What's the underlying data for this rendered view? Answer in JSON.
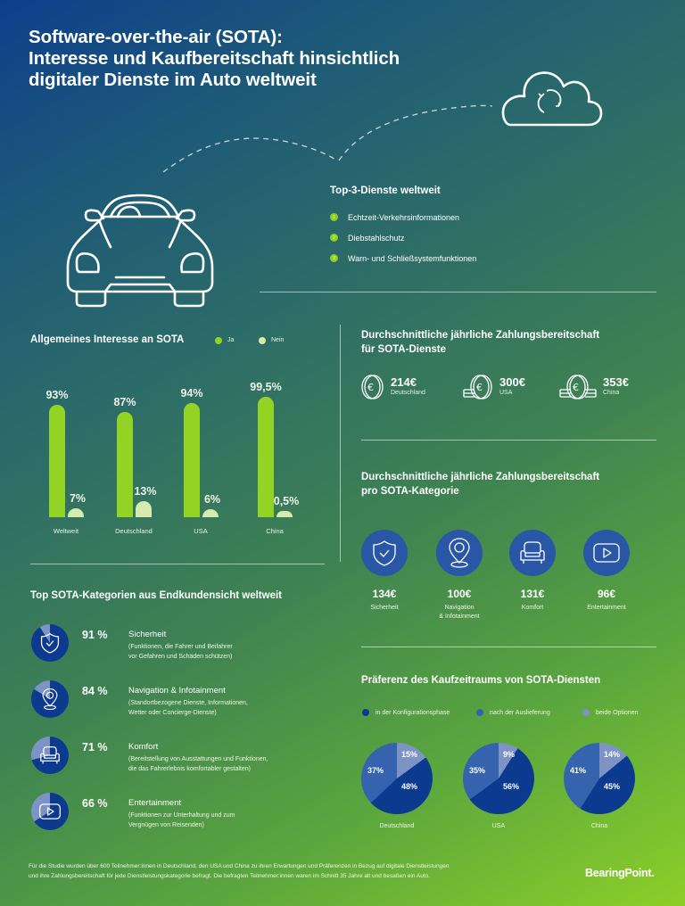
{
  "title": {
    "line1": "Software-over-the-air (SOTA):",
    "line2": "Interesse und Kaufbereitschaft hinsichtlich",
    "line3": "digitaler Dienste im Auto weltweit"
  },
  "top3": {
    "heading": "Top-3-Dienste weltweit",
    "items": [
      {
        "num": "1",
        "label": "Echtzeit-Verkehrsinformationen"
      },
      {
        "num": "2",
        "label": "Diebstahlschutz"
      },
      {
        "num": "3",
        "label": "Warn- und Schließsystemfunktionen"
      }
    ]
  },
  "interest": {
    "heading": "Allgemeines Interesse an SOTA",
    "legend": {
      "ja": "Ja",
      "nein": "Nein"
    }
  },
  "payment": {
    "heading_line1": "Durchschnittliche jährliche Zahlungsbereitschaft",
    "heading_line2": "für SOTA-Dienste",
    "items": [
      {
        "value": "214€",
        "label": "Deutschland"
      },
      {
        "value": "300€",
        "label": "USA"
      },
      {
        "value": "353€",
        "label": "China"
      }
    ]
  },
  "per_category": {
    "heading_line1": "Durchschnittliche jährliche Zahlungsbereitschaft",
    "heading_line2": "pro SOTA-Kategorie",
    "items": [
      {
        "value": "134€",
        "label": "Sicherheit",
        "label2": "",
        "icon": "shield-check-icon"
      },
      {
        "value": "100€",
        "label": "Navigation",
        "label2": "& Infotainment",
        "icon": "map-pin-icon"
      },
      {
        "value": "131€",
        "label": "Komfort",
        "label2": "",
        "icon": "armchair-icon"
      },
      {
        "value": "96€",
        "label": "Entertainment",
        "label2": "",
        "icon": "play-video-icon"
      }
    ]
  },
  "top_categories": {
    "heading": "Top SOTA-Kategorien aus Endkundensicht weltweit",
    "items": [
      {
        "pct": "91 %",
        "name": "Sicherheit",
        "desc1": "(Funktionen, die Fahrer und Beifahrer",
        "desc2": "vor Gefahren und Schäden schützen)"
      },
      {
        "pct": "84 %",
        "name": "Navigation & Infotainment",
        "desc1": "(Standortbezogene Dienste, Informationen,",
        "desc2": "Wetter oder Concierge-Dienste)"
      },
      {
        "pct": "71 %",
        "name": "Komfort",
        "desc1": "(Bereitstellung von Ausstattungen und Funktionen,",
        "desc2": "die das Fahrerlebnis komfortabler gestalten)"
      },
      {
        "pct": "66 %",
        "name": "Entertainment",
        "desc1": "(Funktionen zur Unterhaltung und zum",
        "desc2": "Vergnügen von Reisenden)"
      }
    ]
  },
  "purchase_pref": {
    "heading": "Präferenz des Kaufzeitraums von SOTA-Diensten",
    "legend": [
      "in der Konfigurationsphase",
      "nach der Auslieferung",
      "beide Optionen"
    ]
  },
  "colors": {
    "ja": "#93d323",
    "nein": "#d5ecae",
    "konfig": "#0b3a8f",
    "auslieferung": "#3563ad",
    "beide": "#7d93c6",
    "circle": "#2a56a6"
  },
  "footer": {
    "line1": "Für die Studie wurden über 600 Teilnehmer:innen in Deutschland, den USA und China zu ihren Erwartungen und Präferenzen in Bezug auf digitale Dienstleistungen",
    "line2": "und ihre Zahlungsbereitschaft für jede Dienstleistungskategorie befragt. Die befragten Teilnehmer:innen waren im Schnitt 35 Jahre alt und besaßen ein Auto.",
    "logo": "BearingPoint",
    "logo_dot": "."
  },
  "chart_data": [
    {
      "type": "bar",
      "title": "Allgemeines Interesse an SOTA",
      "categories": [
        "Weltweit",
        "Deutschland",
        "USA",
        "China"
      ],
      "series": [
        {
          "name": "Ja",
          "values": [
            93,
            87,
            94,
            99.5
          ],
          "labels": [
            "93%",
            "87%",
            "94%",
            "99,5%"
          ]
        },
        {
          "name": "Nein",
          "values": [
            7,
            13,
            6,
            0.5
          ],
          "labels": [
            "7%",
            "13%",
            "6%",
            "0,5%"
          ]
        }
      ],
      "xlabel": "",
      "ylabel": "",
      "ylim": [
        0,
        100
      ],
      "grid": false,
      "legend_position": "top-right"
    },
    {
      "type": "table",
      "title": "Durchschnittliche jährliche Zahlungsbereitschaft für SOTA-Dienste",
      "categories": [
        "Deutschland",
        "USA",
        "China"
      ],
      "values": [
        214,
        300,
        353
      ],
      "unit": "€"
    },
    {
      "type": "table",
      "title": "Durchschnittliche jährliche Zahlungsbereitschaft pro SOTA-Kategorie",
      "categories": [
        "Sicherheit",
        "Navigation & Infotainment",
        "Komfort",
        "Entertainment"
      ],
      "values": [
        134,
        100,
        131,
        96
      ],
      "unit": "€"
    },
    {
      "type": "pie",
      "title": "Top SOTA-Kategorien aus Endkundensicht weltweit",
      "categories": [
        "Sicherheit",
        "Navigation & Infotainment",
        "Komfort",
        "Entertainment"
      ],
      "values": [
        91,
        84,
        71,
        66
      ],
      "unit": "%"
    },
    {
      "type": "pie",
      "title": "Präferenz des Kaufzeitraums von SOTA-Diensten",
      "categories": [
        "Deutschland",
        "USA",
        "China"
      ],
      "series": [
        {
          "name": "in der Konfigurationsphase",
          "values": [
            48,
            56,
            45
          ]
        },
        {
          "name": "nach der Auslieferung",
          "values": [
            37,
            35,
            41
          ]
        },
        {
          "name": "beide Optionen",
          "values": [
            15,
            9,
            14
          ]
        }
      ],
      "legend_position": "top"
    }
  ],
  "bars": [
    {
      "cat": "Weltweit",
      "ja": 93,
      "nein": 7,
      "ja_lbl": "93%",
      "nein_lbl": "7%"
    },
    {
      "cat": "Deutschland",
      "ja": 87,
      "nein": 13,
      "ja_lbl": "87%",
      "nein_lbl": "13%"
    },
    {
      "cat": "USA",
      "ja": 94,
      "nein": 6,
      "ja_lbl": "94%",
      "nein_lbl": "6%"
    },
    {
      "cat": "China",
      "ja": 99.5,
      "nein": 0.5,
      "ja_lbl": "99,5%",
      "nein_lbl": "0,5%"
    }
  ],
  "pies": [
    {
      "cat": "Deutschland",
      "konfig": 48,
      "auslieferung": 37,
      "beide": 15,
      "l_konfig": "48%",
      "l_ausl": "37%",
      "l_beide": "15%"
    },
    {
      "cat": "USA",
      "konfig": 56,
      "auslieferung": 35,
      "beide": 9,
      "l_konfig": "56%",
      "l_ausl": "35%",
      "l_beide": "9%"
    },
    {
      "cat": "China",
      "konfig": 45,
      "auslieferung": 41,
      "beide": 14,
      "l_konfig": "45%",
      "l_ausl": "41%",
      "l_beide": "14%"
    }
  ],
  "donuts": [
    91,
    84,
    71,
    66
  ]
}
